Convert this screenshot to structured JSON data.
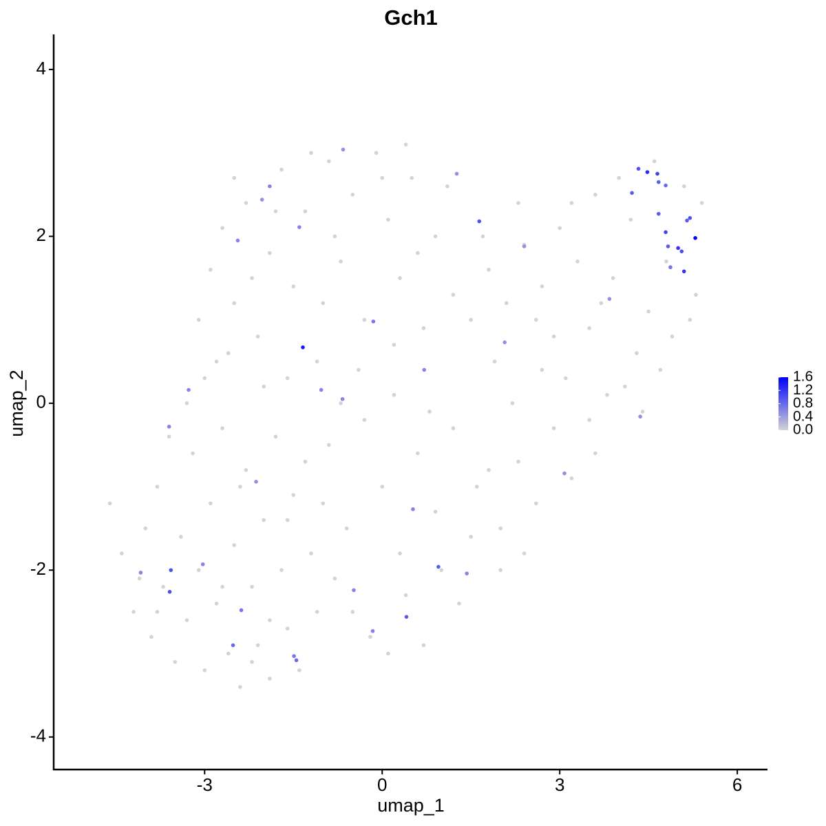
{
  "chart_data": {
    "type": "scatter",
    "title": "Gch1",
    "xlabel": "umap_1",
    "ylabel": "umap_2",
    "xlim": [
      -5.55,
      6.51
    ],
    "ylim": [
      -4.39,
      4.42
    ],
    "xticks": [
      -3,
      0,
      3,
      6
    ],
    "yticks": [
      -4,
      -2,
      0,
      2,
      4
    ],
    "x": [
      -4.6,
      -4.4,
      -4.2,
      -4.0,
      -3.9,
      -3.8,
      -3.7,
      -3.5,
      -3.4,
      -3.3,
      -3.2,
      -3.1,
      -3.0,
      -2.9,
      -2.8,
      -2.7,
      -2.6,
      -2.5,
      -2.4,
      -2.3,
      -2.2,
      -2.1,
      -2.0,
      -1.9,
      -1.8,
      -1.7,
      -1.6,
      -1.5,
      -1.4,
      -1.3,
      -1.2,
      -1.1,
      -3.6,
      -3.0,
      -2.6,
      -3.3,
      -2.0,
      -2.4,
      -1.9,
      -2.7,
      -3.8,
      -4.1,
      -2.2,
      -1.6,
      -3.1,
      -2.9,
      -2.7,
      -2.5,
      -2.3,
      -2.1,
      -1.9,
      -1.7,
      -1.5,
      -1.3,
      -1.1,
      -0.9,
      -0.7,
      -0.5,
      -0.3,
      -0.1,
      0.1,
      0.3,
      0.5,
      0.7,
      0.9,
      -2.8,
      -2.2,
      -1.6,
      -1.0,
      -0.4,
      0.2,
      0.6,
      -1.8,
      -0.8,
      0.0,
      -2.5,
      1.1,
      1.2,
      -1.2,
      0.4,
      -0.9,
      -0.6,
      -0.3,
      0.0,
      0.3,
      0.6,
      0.9,
      1.2,
      1.5,
      1.8,
      -0.8,
      0.4,
      1.0,
      -0.2,
      0.7,
      0.1,
      -0.5,
      1.3,
      1.6,
      0.8,
      -1.0,
      0.2,
      -0.7,
      2.0,
      2.3,
      2.6,
      2.9,
      3.2,
      3.5,
      3.8,
      2.2,
      2.7,
      3.1,
      3.6,
      2.0,
      2.4,
      4.1,
      4.4,
      1.9,
      1.5,
      1.8,
      2.1,
      2.4,
      2.7,
      3.0,
      3.3,
      3.6,
      3.9,
      4.2,
      4.5,
      4.8,
      5.2,
      5.4,
      4.6,
      4.3,
      3.5,
      2.9,
      2.3,
      1.7,
      4.9,
      5.1,
      4.0,
      3.2,
      2.6,
      4.7,
      5.3,
      3.7,
      5.29,
      4.48,
      4.33,
      4.65,
      4.22,
      4.67,
      4.79,
      4.67,
      4.79,
      5.0,
      5.06,
      5.1,
      5.15,
      5.2,
      4.83,
      4.87,
      1.64,
      -1.34,
      -3.57,
      -3.59,
      0.41,
      -1.45,
      -1.49,
      -2.52,
      0.95,
      0.52,
      -0.15,
      -0.67,
      -3.27,
      -3.6,
      -2.44,
      -1.9,
      -0.66,
      1.26,
      2.07,
      3.84,
      4.36,
      3.08,
      -2.38,
      -0.48,
      -0.16,
      1.43,
      -4.08,
      -3.03,
      -2.13,
      -1.03,
      0.71,
      2.4,
      -2.03,
      -1.4
    ],
    "y": [
      -1.2,
      -1.8,
      -2.5,
      -1.5,
      -2.8,
      -1.0,
      -2.2,
      -3.1,
      -1.6,
      -2.6,
      -0.6,
      -2.0,
      -3.2,
      -1.2,
      -2.4,
      -0.3,
      -3.0,
      -1.7,
      -3.4,
      -0.8,
      -2.2,
      -2.9,
      -1.4,
      -3.3,
      -0.4,
      -2.0,
      -2.7,
      -1.1,
      -3.2,
      -0.7,
      -1.8,
      -2.5,
      -0.4,
      0.3,
      0.6,
      0.0,
      0.2,
      -1.0,
      -2.6,
      -2.2,
      -2.5,
      -2.1,
      -3.1,
      -1.4,
      1.0,
      1.6,
      2.1,
      1.2,
      2.4,
      0.8,
      1.8,
      2.8,
      1.4,
      2.3,
      0.5,
      2.9,
      1.7,
      2.5,
      1.0,
      3.0,
      2.2,
      1.5,
      2.7,
      0.9,
      2.0,
      0.5,
      1.5,
      0.3,
      1.2,
      0.4,
      0.7,
      1.8,
      2.3,
      2.0,
      2.7,
      2.7,
      2.6,
      1.3,
      3.0,
      3.1,
      -0.5,
      -1.5,
      -0.2,
      -1.0,
      -1.8,
      -0.6,
      -1.3,
      -0.3,
      -1.6,
      -0.8,
      -2.1,
      -2.3,
      -2.0,
      -2.8,
      -2.9,
      -3.0,
      -2.5,
      -2.4,
      -1.0,
      -0.1,
      -1.2,
      0.1,
      0.0,
      -1.5,
      -0.7,
      -1.2,
      -0.3,
      -0.9,
      -0.2,
      0.1,
      0.0,
      0.4,
      0.3,
      -0.6,
      -2.0,
      -1.8,
      0.2,
      -0.1,
      0.5,
      1.0,
      1.6,
      1.2,
      1.9,
      1.4,
      2.1,
      1.7,
      2.5,
      1.5,
      2.2,
      1.1,
      1.7,
      1.0,
      2.4,
      2.9,
      0.6,
      0.9,
      0.8,
      2.4,
      2.0,
      0.8,
      2.6,
      2.7,
      2.4,
      1.0,
      0.4,
      1.3,
      1.2,
      1.98,
      2.77,
      2.81,
      2.75,
      2.52,
      2.65,
      2.61,
      2.27,
      2.05,
      1.86,
      1.82,
      1.58,
      2.19,
      2.22,
      1.88,
      1.63,
      2.18,
      0.67,
      -2.0,
      -2.26,
      -2.56,
      -3.08,
      -3.03,
      -2.9,
      -1.96,
      -1.27,
      0.98,
      0.05,
      0.16,
      -0.28,
      1.95,
      2.6,
      3.04,
      2.75,
      0.73,
      1.25,
      -0.16,
      -0.84,
      -2.48,
      -2.24,
      -2.73,
      -2.04,
      -2.03,
      -1.93,
      -0.94,
      0.16,
      0.4,
      1.88,
      2.44,
      2.11
    ],
    "values": [
      0,
      0,
      0,
      0,
      0,
      0,
      0,
      0,
      0,
      0,
      0,
      0,
      0,
      0,
      0,
      0,
      0,
      0,
      0,
      0,
      0,
      0,
      0,
      0,
      0,
      0,
      0,
      0,
      0,
      0,
      0,
      0,
      0,
      0,
      0,
      0,
      0,
      0,
      0,
      0,
      0,
      0,
      0,
      0,
      0,
      0,
      0,
      0,
      0,
      0,
      0,
      0,
      0,
      0,
      0,
      0,
      0,
      0,
      0,
      0,
      0,
      0,
      0,
      0,
      0,
      0,
      0,
      0,
      0,
      0,
      0,
      0,
      0,
      0,
      0,
      0,
      0,
      0,
      0,
      0,
      0,
      0,
      0,
      0,
      0,
      0,
      0,
      0,
      0,
      0,
      0,
      0,
      0,
      0,
      0,
      0,
      0,
      0,
      0,
      0,
      0,
      0,
      0,
      0,
      0,
      0,
      0,
      0,
      0,
      0,
      0,
      0,
      0,
      0,
      0,
      0,
      0,
      0,
      0,
      0,
      0,
      0,
      0,
      0,
      0,
      0,
      0,
      0,
      0,
      0,
      0,
      0,
      0,
      0,
      0,
      0,
      0,
      0,
      0,
      0,
      0,
      0,
      0,
      0,
      0,
      0,
      0,
      1.6,
      1.3,
      1.0,
      1.1,
      0.9,
      0.9,
      0.8,
      0.9,
      1.1,
      1.2,
      1.0,
      1.2,
      0.9,
      1.0,
      0.9,
      0.7,
      1.0,
      1.4,
      1.0,
      1.0,
      0.9,
      0.8,
      0.7,
      0.8,
      0.9,
      0.6,
      0.7,
      0.6,
      0.6,
      0.6,
      0.6,
      0.6,
      0.5,
      0.5,
      0.5,
      0.5,
      0.5,
      0.5,
      0.7,
      0.6,
      0.6,
      0.6,
      0.6,
      0.6,
      0.5,
      0.6,
      0.6,
      0.5,
      0.5,
      0.6
    ],
    "colorbar": {
      "low": "#d3d3d3",
      "high": "#0000ff",
      "lim": [
        0,
        1.6
      ],
      "ticks": [
        {
          "value": 0,
          "label": "0.0"
        },
        0.4,
        0.8,
        1.2,
        1.6
      ]
    }
  }
}
